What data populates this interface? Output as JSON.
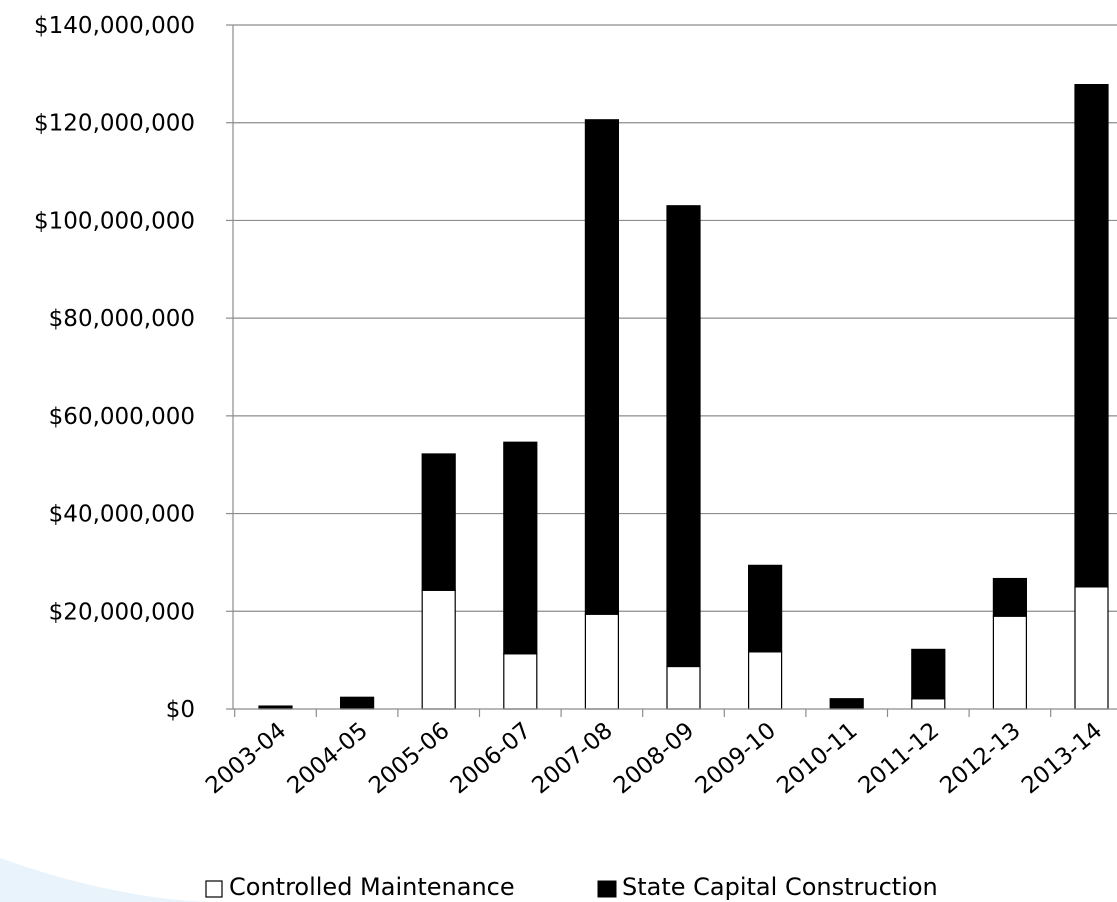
{
  "chart_data": {
    "type": "bar",
    "stacked": true,
    "categories": [
      "2003-04",
      "2004-05",
      "2005-06",
      "2006-07",
      "2007-08",
      "2008-09",
      "2009-10",
      "2010-11",
      "2011-12",
      "2012-13",
      "2013-14"
    ],
    "series": [
      {
        "name": "Controlled Maintenance",
        "color": "#ffffff",
        "values": [
          0,
          0,
          24300000,
          11300000,
          19400000,
          8700000,
          11700000,
          0,
          2100000,
          19000000,
          25000000
        ]
      },
      {
        "name": "State Capital Construction",
        "color": "#000000",
        "values": [
          600000,
          2400000,
          27900000,
          43300000,
          101200000,
          94300000,
          17700000,
          2100000,
          10100000,
          7700000,
          102800000
        ]
      }
    ],
    "y_tick_labels": [
      "$0",
      "$20,000,000",
      "$40,000,000",
      "$60,000,000",
      "$80,000,000",
      "$100,000,000",
      "$120,000,000",
      "$140,000,000"
    ],
    "ylim": [
      0,
      140000000
    ],
    "grid": true,
    "legend_position": "bottom",
    "title": "",
    "xlabel": "",
    "ylabel": ""
  }
}
